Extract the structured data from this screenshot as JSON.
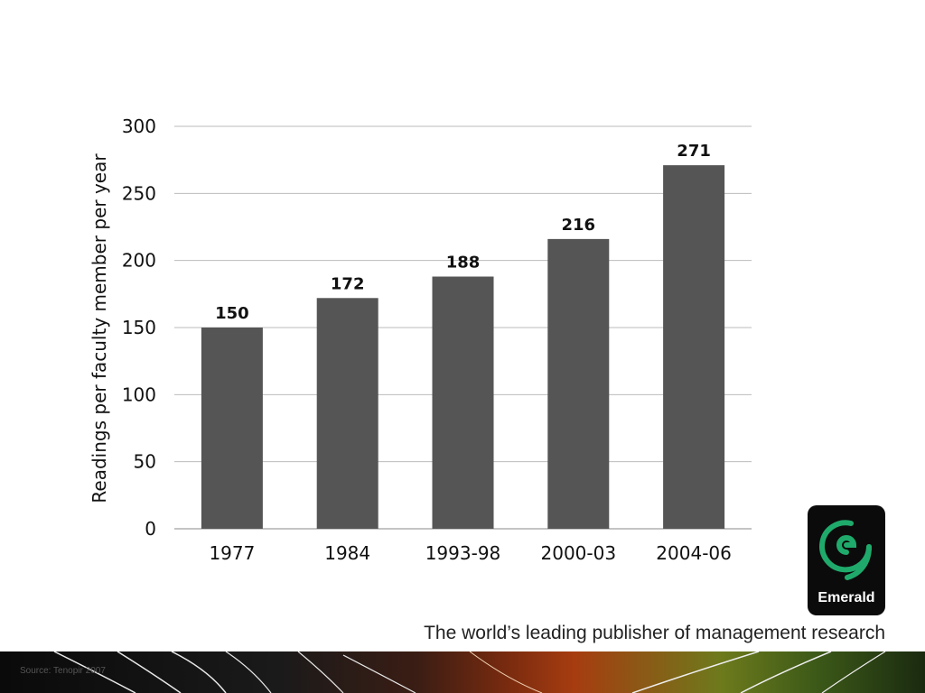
{
  "chart_data": {
    "type": "bar",
    "categories": [
      "1977",
      "1984",
      "1993-98",
      "2000-03",
      "2004-06"
    ],
    "values": [
      150,
      172,
      188,
      216,
      271
    ],
    "data_labels": [
      "150",
      "172",
      "188",
      "216",
      "271"
    ],
    "ylabel": "Readings per faculty member per year",
    "xlabel": "",
    "ylim": [
      0,
      300
    ],
    "yticks": [
      0,
      50,
      100,
      150,
      200,
      250,
      300
    ],
    "grid": true,
    "bar_color": "#555555"
  },
  "logo": {
    "text": "Emerald",
    "accent_color": "#1faa6b",
    "icon": "emerald-logo-icon"
  },
  "tagline": "The world’s leading publisher of management research",
  "source": "Source: Tenopir 2007"
}
